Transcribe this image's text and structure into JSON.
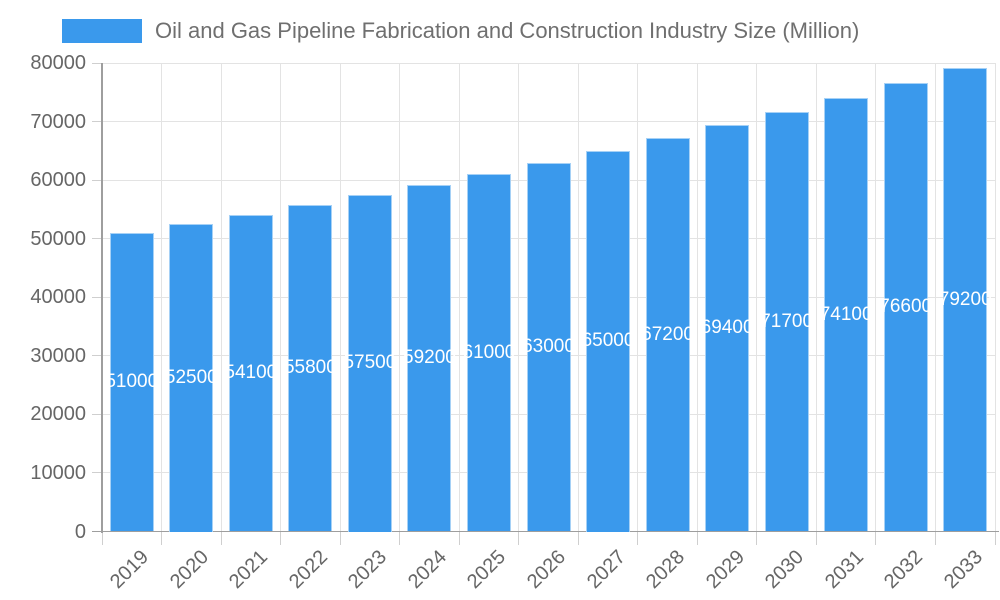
{
  "legend": {
    "label": "Oil and Gas Pipeline Fabrication and Construction Industry Size (Million)"
  },
  "chart_data": {
    "type": "bar",
    "title": "Oil and Gas Pipeline Fabrication and Construction Industry Size (Million)",
    "categories": [
      "2019",
      "2020",
      "2021",
      "2022",
      "2023",
      "2024",
      "2025",
      "2026",
      "2027",
      "2028",
      "2029",
      "2030",
      "2031",
      "2032",
      "2033"
    ],
    "values": [
      51000,
      52500,
      54100,
      55800,
      57500,
      59200,
      61000,
      63000,
      65000,
      67200,
      69400,
      71700,
      74100,
      76600,
      79200
    ],
    "bar_value_labels": [
      "51000",
      "52500",
      "54100",
      "55800",
      "57500",
      "59200",
      "61000",
      "63000",
      "65000",
      "67200",
      "69400",
      "71700",
      "74100",
      "76600",
      "79200"
    ],
    "xlabel": "",
    "ylabel": "",
    "ylim": [
      0,
      80000
    ],
    "ytick_step": 10000,
    "ytick_labels": [
      "0",
      "10000",
      "20000",
      "30000",
      "40000",
      "50000",
      "60000",
      "70000",
      "80000"
    ],
    "grid": "on",
    "legend_position": "top-left",
    "colors": {
      "bar": "#3A99EC",
      "bar_edge": "rgba(255,255,255,0.55)",
      "bar_value_text": "#FFFFFF",
      "grid_line": "#E3E3E3",
      "tick_mark": "#CFCFCF",
      "axis_line": "#9E9E9E",
      "axis_text": "#666666",
      "legend_text": "#6F6F6F"
    }
  }
}
